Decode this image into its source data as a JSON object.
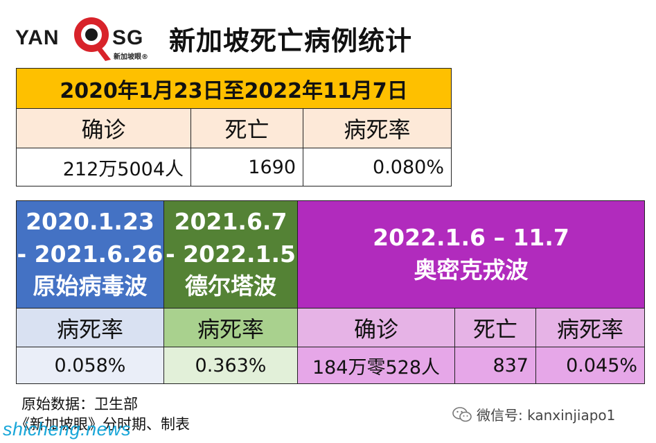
{
  "header": {
    "logo_left": "YAN",
    "logo_right": "SG",
    "logo_sub": "新加坡眼®",
    "title": "新加坡死亡病例统计"
  },
  "table1": {
    "period": "2020年1月23日至2022年11月7日",
    "headers": [
      "确诊",
      "死亡",
      "病死率"
    ],
    "values": [
      "212万5004人",
      "1690",
      "0.080%"
    ]
  },
  "table2": {
    "waves": [
      {
        "lines": [
          "2020.1.23",
          "- 2021.6.26",
          "原始病毒波"
        ]
      },
      {
        "lines": [
          "2021.6.7",
          "- 2022.1.5",
          "德尔塔波"
        ]
      },
      {
        "lines": [
          "2022.1.6 – 11.7",
          "奥密克戎波"
        ]
      }
    ],
    "headers": [
      "病死率",
      "病死率",
      "确诊",
      "死亡",
      "病死率"
    ],
    "values": [
      "0.058%",
      "0.363%",
      "184万零528人",
      "837",
      "0.045%"
    ]
  },
  "footer": {
    "source": "原始数据：卫生部",
    "credit": "《新加坡眼》分时期、制表",
    "wechat": "微信号: kanxinjiapo1",
    "watermark": "shicheng.news"
  },
  "colors": {
    "gold": "#fec000",
    "peach": "#fde9d8",
    "blue": "#4472c4",
    "green": "#548235",
    "purple": "#b12bbd",
    "logo_red": "#d8232a"
  },
  "icons": [
    "magnifier-logo-icon",
    "wechat-icon"
  ]
}
